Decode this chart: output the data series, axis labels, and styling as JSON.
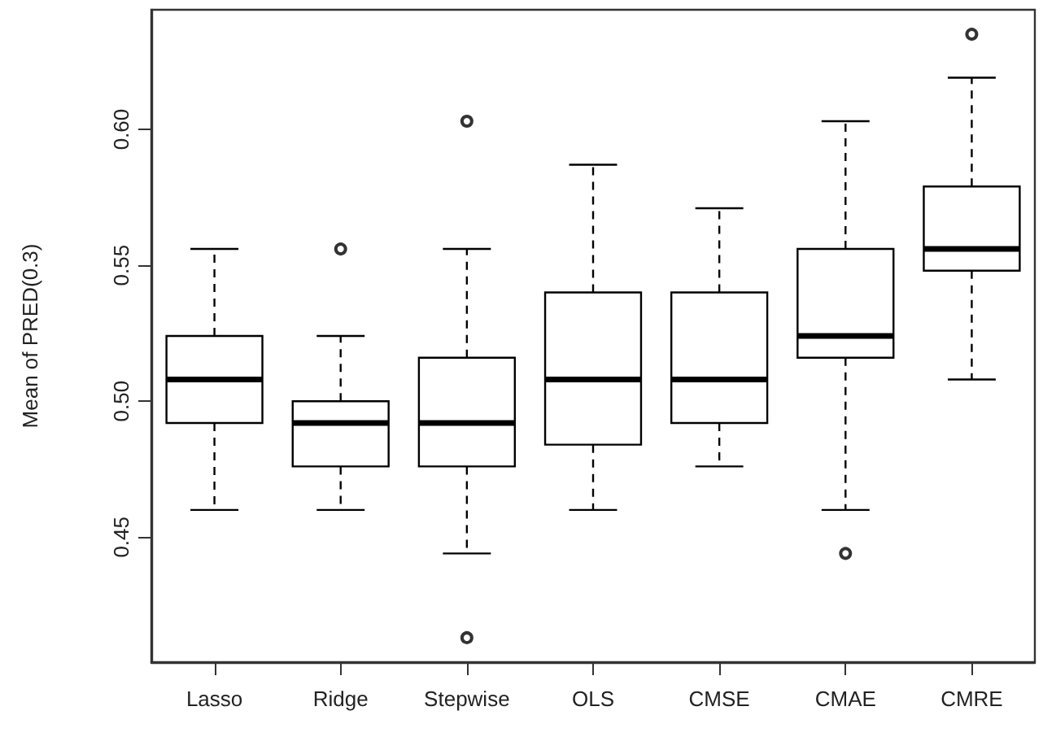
{
  "chart_data": {
    "type": "box",
    "ylabel": "Mean of PRED(0.3)",
    "categories": [
      "Lasso",
      "Ridge",
      "Stepwise",
      "OLS",
      "CMSE",
      "CMAE",
      "CMRE"
    ],
    "boxes": [
      {
        "low": 0.46,
        "q1": 0.492,
        "median": 0.508,
        "q3": 0.524,
        "high": 0.556
      },
      {
        "low": 0.46,
        "q1": 0.476,
        "median": 0.492,
        "q3": 0.5,
        "high": 0.524,
        "outliers": [
          0.556
        ]
      },
      {
        "low": 0.444,
        "q1": 0.476,
        "median": 0.492,
        "q3": 0.516,
        "high": 0.556,
        "outliers": [
          0.603,
          0.413
        ]
      },
      {
        "low": 0.46,
        "q1": 0.484,
        "median": 0.508,
        "q3": 0.54,
        "high": 0.587
      },
      {
        "low": 0.476,
        "q1": 0.492,
        "median": 0.508,
        "q3": 0.54,
        "high": 0.571
      },
      {
        "low": 0.46,
        "q1": 0.516,
        "median": 0.524,
        "q3": 0.556,
        "high": 0.603,
        "outliers": [
          0.444
        ]
      },
      {
        "low": 0.508,
        "q1": 0.548,
        "median": 0.556,
        "q3": 0.579,
        "high": 0.619,
        "outliers": [
          0.635
        ]
      }
    ],
    "color": "#000000",
    "ylim": [
      0.404,
      0.644
    ],
    "yticks": [
      0.45,
      {
        "value": 0.5,
        "label": "0.50"
      },
      0.55,
      {
        "value": 0.6,
        "label": "0.60"
      }
    ],
    "grid": false,
    "marker": "circle"
  }
}
